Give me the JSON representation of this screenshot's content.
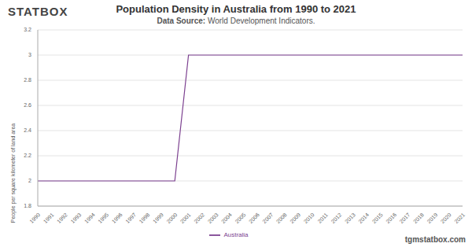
{
  "chart_data": {
    "type": "line",
    "title": "Population Density in Australia from 1990 to 2021",
    "subtitle": "Data Source: World Development Indicators.",
    "y_label": "People per square kilometer of land area",
    "annotations": [
      "STATBOX",
      "tgmstatbox.com"
    ],
    "categories": [
      "1990",
      "1991",
      "1992",
      "1993",
      "1994",
      "1995",
      "1996",
      "1997",
      "1998",
      "1999",
      "2000",
      "2001",
      "2002",
      "2003",
      "2004",
      "2005",
      "2006",
      "2007",
      "2008",
      "2009",
      "2010",
      "2011",
      "2012",
      "2013",
      "2014",
      "2015",
      "2016",
      "2017",
      "2018",
      "2019",
      "2020",
      "2021"
    ],
    "series": [
      {
        "name": "Australia",
        "color": "#7b3f8f",
        "values": [
          2,
          2,
          2,
          2,
          2,
          2,
          2,
          2,
          2,
          2,
          2,
          3,
          3,
          3,
          3,
          3,
          3,
          3,
          3,
          3,
          3,
          3,
          3,
          3,
          3,
          3,
          3,
          3,
          3,
          3,
          3,
          3
        ]
      }
    ],
    "ylim": [
      1.8,
      3.2
    ],
    "yticks": [
      1.8,
      2,
      2.2,
      2.4,
      2.6,
      2.8,
      3,
      3.2
    ],
    "grid": true,
    "legend": "bottom"
  }
}
